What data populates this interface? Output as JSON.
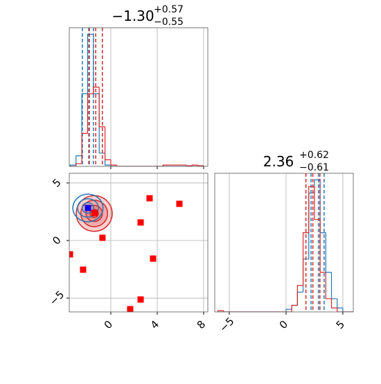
{
  "chart_data": [
    {
      "type": "histogram",
      "title": {
        "median": "−1.30",
        "plus": "+0.57",
        "minus": "−0.55"
      },
      "xlim": [
        -3.58,
        8.36
      ],
      "ylim": [
        0,
        1.05
      ],
      "xticks": [
        0,
        4,
        8
      ],
      "grid": true,
      "bins": [
        -3.5,
        -3,
        -2.5,
        -2,
        -1.5,
        -1,
        -0.5,
        0,
        0.5,
        1,
        1.5,
        2,
        2.5,
        3,
        3.5,
        4,
        4.5,
        5,
        5.5,
        6,
        6.5,
        7,
        7.5,
        8
      ],
      "series": [
        {
          "color": "#1f77b4",
          "values": [
            0.01,
            0.08,
            0.55,
            1.0,
            0.55,
            0.1,
            0.01,
            0,
            0,
            0,
            0,
            0,
            0,
            0,
            0,
            0,
            0,
            0,
            0,
            0,
            0,
            0,
            0
          ],
          "quantiles": [
            -2.45,
            -1.9,
            -1.5
          ]
        },
        {
          "color": "#d62728",
          "values": [
            0,
            0.02,
            0.25,
            0.55,
            0.6,
            0.3,
            0.05,
            0.01,
            0,
            0,
            0,
            0,
            0,
            0,
            0,
            0,
            0.01,
            0.01,
            0.01,
            0.01,
            0.005,
            0.01,
            0.005
          ],
          "quantiles": [
            -1.85,
            -1.3,
            -0.73
          ]
        }
      ]
    },
    {
      "type": "scatter",
      "xlim": [
        -3.58,
        8.36
      ],
      "ylim": [
        -6.2,
        5.84
      ],
      "xticks": [
        0,
        4,
        8
      ],
      "yticks": [
        {
          "value": -5,
          "label": "−5"
        },
        0,
        5
      ],
      "grid": true,
      "contours": [
        {
          "color": "#d62728",
          "filled": true,
          "cx": -1.43,
          "cy": 2.35,
          "rx": [
            1.55,
            1.15,
            0.7,
            0.35
          ],
          "ry": [
            1.55,
            1.15,
            0.7,
            0.35
          ]
        },
        {
          "color": "#1f77b4",
          "filled": false,
          "cx": -1.97,
          "cy": 2.83,
          "rx": [
            1.3,
            0.9,
            0.5
          ],
          "ry": [
            1.2,
            0.8,
            0.45
          ]
        }
      ],
      "series": [
        {
          "color": "#ff0000",
          "x": [
            3.34,
            5.91,
            2.57,
            -0.72,
            -3.52,
            3.64,
            -2.39,
            2.57,
            1.67,
            -1.4
          ],
          "y": [
            3.67,
            3.19,
            1.57,
            0.24,
            -1.2,
            -1.57,
            -2.53,
            -5.12,
            -5.96,
            2.4
          ]
        },
        {
          "color": "#0000ff",
          "x": [
            -1.97
          ],
          "y": [
            2.83
          ]
        }
      ]
    },
    {
      "type": "histogram",
      "title": {
        "median": "2.36",
        "plus": "+0.62",
        "minus": "−0.61"
      },
      "xlim": [
        -6.28,
        5.92
      ],
      "ylim": [
        0,
        1.05
      ],
      "xticks": [
        {
          "value": -5,
          "label": "−5"
        },
        0,
        5
      ],
      "grid": true,
      "bins": [
        -6,
        -5.5,
        -5,
        -4.5,
        -4,
        -3.5,
        -3,
        -2.5,
        -2,
        -1.5,
        -1,
        -0.5,
        0,
        0.5,
        1,
        1.5,
        2,
        2.5,
        3,
        3.5,
        4,
        4.5,
        5,
        5.5,
        6
      ],
      "series": [
        {
          "color": "#1f77b4",
          "values": [
            0,
            0,
            0,
            0,
            0,
            0,
            0,
            0,
            0,
            0,
            0,
            0,
            0.02,
            0.05,
            0.15,
            0.4,
            0.9,
            1.0,
            0.6,
            0.3,
            0.1,
            0.03,
            0,
            0
          ],
          "quantiles": [
            2.2,
            2.85,
            3.35
          ]
        },
        {
          "color": "#d62728",
          "values": [
            0.01,
            0,
            0,
            0,
            0,
            0,
            0,
            0,
            0,
            0,
            0,
            0,
            0,
            0.05,
            0.2,
            0.6,
            0.95,
            0.7,
            0.3,
            0.1,
            0.03,
            0,
            0,
            0
          ],
          "quantiles": [
            1.75,
            2.36,
            2.98
          ]
        }
      ]
    }
  ]
}
